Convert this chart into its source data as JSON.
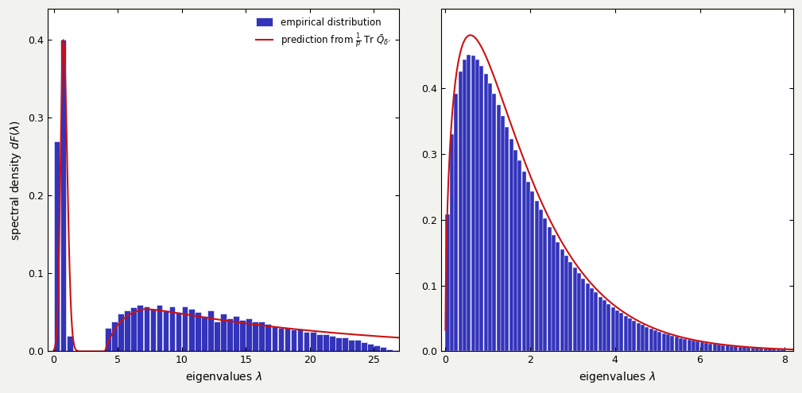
{
  "fig_width": 10.09,
  "fig_height": 4.95,
  "dpi": 100,
  "left_plot": {
    "xlim": [
      -0.5,
      27
    ],
    "ylim": [
      0,
      0.44
    ],
    "xticks": [
      0,
      5,
      10,
      15,
      20,
      25
    ],
    "yticks": [
      0.0,
      0.1,
      0.2,
      0.3,
      0.4
    ],
    "xlabel": "eigenvalues $\\lambda$",
    "ylabel": "spectral density $dF(\\lambda)$",
    "bar_color": "#3333bb",
    "bar_edgecolor": "white",
    "line_color": "#cc1111"
  },
  "right_plot": {
    "xlim": [
      -0.1,
      8.2
    ],
    "ylim": [
      0,
      0.52
    ],
    "xticks": [
      0,
      2,
      4,
      6,
      8
    ],
    "yticks": [
      0.0,
      0.1,
      0.2,
      0.3,
      0.4
    ],
    "xlabel": "eigenvalues $\\lambda$",
    "ylabel": "",
    "bar_color": "#3333bb",
    "bar_edgecolor": "white",
    "line_color": "#cc1111"
  },
  "legend_labels": [
    "empirical distribution",
    "prediction from $\\frac{1}{p}$ Tr $\\bar{Q}_{\\delta'}$"
  ],
  "legend_bar_color": "#3333bb",
  "legend_line_color": "#cc1111",
  "background_color": "#f2f2ee",
  "axes_background": "#ffffff"
}
